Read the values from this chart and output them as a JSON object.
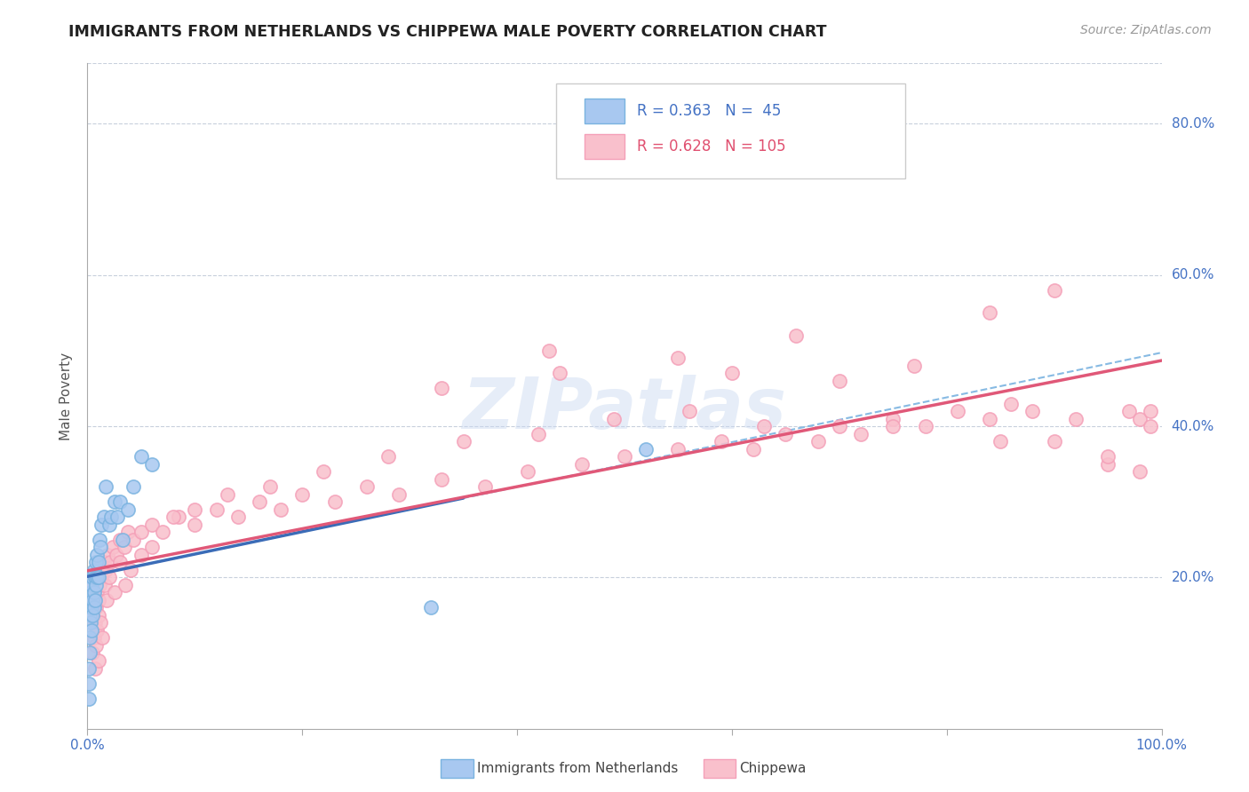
{
  "title": "IMMIGRANTS FROM NETHERLANDS VS CHIPPEWA MALE POVERTY CORRELATION CHART",
  "source": "Source: ZipAtlas.com",
  "ylabel": "Male Poverty",
  "legend_label1": "Immigrants from Netherlands",
  "legend_label2": "Chippewa",
  "R1": 0.363,
  "N1": 45,
  "R2": 0.628,
  "N2": 105,
  "color_blue": "#7ab3e0",
  "color_blue_fill": "#a8c8f0",
  "color_pink": "#f4a0b8",
  "color_pink_fill": "#f9c0cc",
  "color_blue_line": "#3b6cb7",
  "color_pink_line": "#e05878",
  "color_blue_text": "#4472c4",
  "color_pink_text": "#e05070",
  "color_grid": "#c8d0dc",
  "blue_x": [
    0.001,
    0.001,
    0.001,
    0.002,
    0.002,
    0.002,
    0.002,
    0.003,
    0.003,
    0.003,
    0.003,
    0.004,
    0.004,
    0.004,
    0.005,
    0.005,
    0.005,
    0.006,
    0.006,
    0.006,
    0.007,
    0.007,
    0.008,
    0.008,
    0.009,
    0.009,
    0.01,
    0.01,
    0.011,
    0.012,
    0.013,
    0.015,
    0.017,
    0.02,
    0.022,
    0.025,
    0.028,
    0.03,
    0.033,
    0.038,
    0.043,
    0.05,
    0.06,
    0.32,
    0.52
  ],
  "blue_y": [
    0.04,
    0.06,
    0.08,
    0.1,
    0.12,
    0.15,
    0.17,
    0.14,
    0.16,
    0.18,
    0.2,
    0.13,
    0.16,
    0.19,
    0.15,
    0.17,
    0.2,
    0.16,
    0.18,
    0.21,
    0.17,
    0.2,
    0.19,
    0.22,
    0.2,
    0.23,
    0.2,
    0.22,
    0.25,
    0.24,
    0.27,
    0.28,
    0.32,
    0.27,
    0.28,
    0.3,
    0.28,
    0.3,
    0.25,
    0.29,
    0.32,
    0.36,
    0.35,
    0.16,
    0.37
  ],
  "pink_x": [
    0.002,
    0.003,
    0.004,
    0.004,
    0.005,
    0.005,
    0.006,
    0.007,
    0.008,
    0.009,
    0.01,
    0.01,
    0.011,
    0.012,
    0.013,
    0.015,
    0.017,
    0.019,
    0.021,
    0.024,
    0.027,
    0.03,
    0.034,
    0.038,
    0.043,
    0.05,
    0.06,
    0.07,
    0.085,
    0.1,
    0.12,
    0.14,
    0.16,
    0.18,
    0.2,
    0.23,
    0.26,
    0.29,
    0.33,
    0.37,
    0.41,
    0.46,
    0.5,
    0.55,
    0.59,
    0.62,
    0.65,
    0.68,
    0.7,
    0.72,
    0.75,
    0.78,
    0.81,
    0.84,
    0.86,
    0.88,
    0.9,
    0.92,
    0.95,
    0.97,
    0.98,
    0.99,
    0.005,
    0.006,
    0.007,
    0.008,
    0.009,
    0.01,
    0.012,
    0.014,
    0.016,
    0.018,
    0.02,
    0.025,
    0.03,
    0.035,
    0.04,
    0.05,
    0.06,
    0.08,
    0.1,
    0.13,
    0.17,
    0.22,
    0.28,
    0.35,
    0.42,
    0.49,
    0.56,
    0.63,
    0.7,
    0.77,
    0.84,
    0.9,
    0.33,
    0.44,
    0.55,
    0.66,
    0.43,
    0.6,
    0.75,
    0.85,
    0.95,
    0.98,
    0.99
  ],
  "pink_y": [
    0.17,
    0.16,
    0.15,
    0.18,
    0.16,
    0.19,
    0.17,
    0.14,
    0.16,
    0.18,
    0.17,
    0.15,
    0.19,
    0.21,
    0.2,
    0.22,
    0.21,
    0.23,
    0.22,
    0.24,
    0.23,
    0.25,
    0.24,
    0.26,
    0.25,
    0.26,
    0.27,
    0.26,
    0.28,
    0.27,
    0.29,
    0.28,
    0.3,
    0.29,
    0.31,
    0.3,
    0.32,
    0.31,
    0.33,
    0.32,
    0.34,
    0.35,
    0.36,
    0.37,
    0.38,
    0.37,
    0.39,
    0.38,
    0.4,
    0.39,
    0.41,
    0.4,
    0.42,
    0.41,
    0.43,
    0.42,
    0.38,
    0.41,
    0.35,
    0.42,
    0.41,
    0.4,
    0.1,
    0.12,
    0.08,
    0.11,
    0.13,
    0.09,
    0.14,
    0.12,
    0.19,
    0.17,
    0.2,
    0.18,
    0.22,
    0.19,
    0.21,
    0.23,
    0.24,
    0.28,
    0.29,
    0.31,
    0.32,
    0.34,
    0.36,
    0.38,
    0.39,
    0.41,
    0.42,
    0.4,
    0.46,
    0.48,
    0.55,
    0.58,
    0.45,
    0.47,
    0.49,
    0.52,
    0.5,
    0.47,
    0.4,
    0.38,
    0.36,
    0.34,
    0.42
  ],
  "xlim": [
    0.0,
    1.0
  ],
  "ylim": [
    0.0,
    0.88
  ],
  "yticks": [
    0.2,
    0.4,
    0.6,
    0.8
  ],
  "ytick_labels": [
    "20.0%",
    "40.0%",
    "60.0%",
    "80.0%"
  ]
}
